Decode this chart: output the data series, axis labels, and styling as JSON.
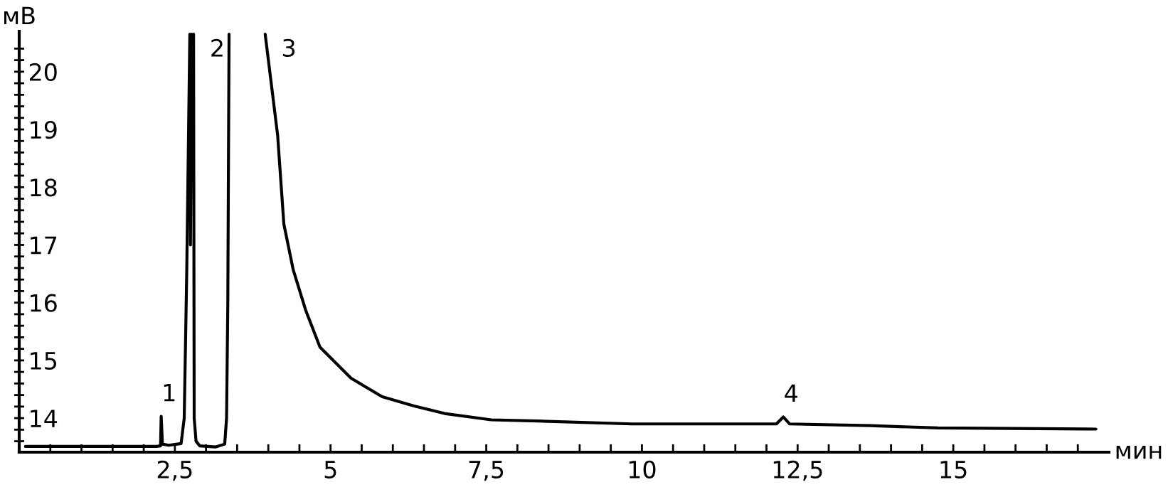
{
  "chart_data": {
    "type": "line",
    "xlabel": "мин",
    "ylabel": "мВ",
    "xlim": [
      0,
      17.5
    ],
    "ylim": [
      13.41,
      20.7
    ],
    "xticks": [
      {
        "value": 0.5,
        "label": null
      },
      {
        "value": 1,
        "label": null
      },
      {
        "value": 1.5,
        "label": null
      },
      {
        "value": 2,
        "label": null
      },
      {
        "value": 2.5,
        "label": "2,5"
      },
      {
        "value": 3,
        "label": null
      },
      {
        "value": 3.5,
        "label": null
      },
      {
        "value": 4,
        "label": null
      },
      {
        "value": 4.5,
        "label": null
      },
      {
        "value": 5,
        "label": "5"
      },
      {
        "value": 5.5,
        "label": null
      },
      {
        "value": 6,
        "label": null
      },
      {
        "value": 6.5,
        "label": null
      },
      {
        "value": 7,
        "label": null
      },
      {
        "value": 7.5,
        "label": "7,5"
      },
      {
        "value": 8,
        "label": null
      },
      {
        "value": 8.5,
        "label": null
      },
      {
        "value": 9,
        "label": null
      },
      {
        "value": 9.5,
        "label": null
      },
      {
        "value": 10,
        "label": "10"
      },
      {
        "value": 10.5,
        "label": null
      },
      {
        "value": 11,
        "label": null
      },
      {
        "value": 11.5,
        "label": null
      },
      {
        "value": 12,
        "label": null
      },
      {
        "value": 12.5,
        "label": "12,5"
      },
      {
        "value": 13,
        "label": null
      },
      {
        "value": 13.5,
        "label": null
      },
      {
        "value": 14,
        "label": null
      },
      {
        "value": 14.5,
        "label": null
      },
      {
        "value": 15,
        "label": "15"
      },
      {
        "value": 15.5,
        "label": null
      },
      {
        "value": 16,
        "label": null
      },
      {
        "value": 16.5,
        "label": null
      },
      {
        "value": 17,
        "label": null
      }
    ],
    "yticks": [
      {
        "value": 13.6,
        "label": null
      },
      {
        "value": 13.8,
        "label": null
      },
      14,
      {
        "value": 14.2,
        "label": null
      },
      {
        "value": 14.4,
        "label": null
      },
      {
        "value": 14.6,
        "label": null
      },
      {
        "value": 14.8,
        "label": null
      },
      15,
      {
        "value": 15.2,
        "label": null
      },
      {
        "value": 15.4,
        "label": null
      },
      {
        "value": 15.6,
        "label": null
      },
      {
        "value": 15.8,
        "label": null
      },
      16,
      {
        "value": 16.2,
        "label": null
      },
      {
        "value": 16.4,
        "label": null
      },
      {
        "value": 16.6,
        "label": null
      },
      {
        "value": 16.8,
        "label": null
      },
      17,
      {
        "value": 17.2,
        "label": null
      },
      {
        "value": 17.4,
        "label": null
      },
      {
        "value": 17.6,
        "label": null
      },
      {
        "value": 17.8,
        "label": null
      },
      18,
      {
        "value": 18.2,
        "label": null
      },
      {
        "value": 18.4,
        "label": null
      },
      {
        "value": 18.6,
        "label": null
      },
      {
        "value": 18.8,
        "label": null
      },
      19,
      {
        "value": 19.2,
        "label": null
      },
      {
        "value": 19.4,
        "label": null
      },
      {
        "value": 19.6,
        "label": null
      },
      {
        "value": 19.8,
        "label": null
      },
      20,
      {
        "value": 20.2,
        "label": null
      },
      {
        "value": 20.4,
        "label": null
      }
    ],
    "grid": false,
    "marker": "none",
    "line_style": "solid",
    "series": [
      {
        "color": "#000000",
        "x": [
          0.1,
          2.2,
          2.27,
          2.28,
          2.3,
          2.4,
          2.6,
          2.65,
          2.69,
          2.74,
          2.75,
          2.77,
          2.785,
          2.8,
          2.81,
          2.84,
          2.9,
          3.15,
          3.3,
          3.33,
          3.35,
          3.37,
          3.6,
          3.95,
          4.15,
          4.25,
          4.4,
          4.6,
          4.83,
          5.33,
          5.83,
          6.34,
          6.83,
          7.58,
          8.33,
          9.84,
          12.16,
          12.27,
          12.37,
          13.67,
          14.75,
          17.29
        ],
        "values": [
          13.51,
          13.51,
          13.52,
          14.03,
          13.55,
          13.53,
          13.56,
          14.0,
          16.5,
          20.65,
          17.0,
          20.65,
          null,
          20.65,
          14.0,
          13.6,
          13.52,
          13.5,
          13.55,
          14.0,
          16.0,
          20.65,
          null,
          20.65,
          18.9,
          17.36,
          16.57,
          15.87,
          15.23,
          14.69,
          14.37,
          14.21,
          14.08,
          13.97,
          13.95,
          13.9,
          13.9,
          14.02,
          13.9,
          13.87,
          13.83,
          13.81
        ]
      }
    ],
    "annotations": [
      {
        "text": "1",
        "x": 2.28,
        "y": 14.03
      },
      {
        "text": "2",
        "x": 2.8,
        "y": 20.65
      },
      {
        "text": "3",
        "x": 3.95,
        "y": 20.65
      },
      {
        "text": "4",
        "x": 12.27,
        "y": 14.02
      }
    ]
  }
}
